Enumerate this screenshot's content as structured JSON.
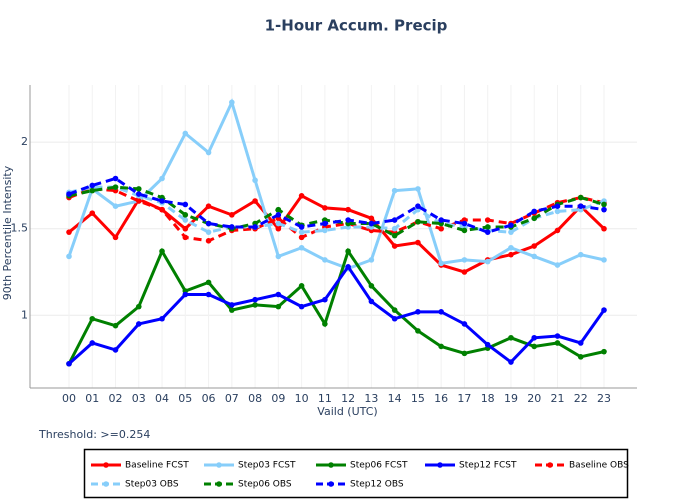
{
  "chart_data": {
    "type": "line",
    "title": "1-Hour Accum. Precip",
    "x_label": "Vaild (UTC)",
    "y_label": "90th Percentile Intensity",
    "annotation": "Threshold: >=0.254",
    "categories": [
      "00",
      "01",
      "02",
      "03",
      "04",
      "05",
      "06",
      "07",
      "08",
      "09",
      "10",
      "11",
      "12",
      "13",
      "14",
      "15",
      "16",
      "17",
      "18",
      "19",
      "20",
      "21",
      "22",
      "23"
    ],
    "ylim": [
      0.58,
      2.33
    ],
    "yticks": [
      1,
      1.5,
      2
    ],
    "grid": true,
    "series": [
      {
        "name": "Baseline FCST",
        "color": "#ff0000",
        "linestyle": "solid",
        "values": [
          1.48,
          1.59,
          1.45,
          1.67,
          1.61,
          1.5,
          1.63,
          1.58,
          1.66,
          1.5,
          1.69,
          1.62,
          1.61,
          1.56,
          1.4,
          1.42,
          1.29,
          1.25,
          1.32,
          1.35,
          1.4,
          1.49,
          1.63,
          1.5
        ]
      },
      {
        "name": "Step03 FCST",
        "color": "#87cefa",
        "linestyle": "solid",
        "values": [
          1.34,
          1.73,
          1.63,
          1.66,
          1.79,
          2.05,
          1.94,
          2.23,
          1.78,
          1.34,
          1.39,
          1.32,
          1.27,
          1.32,
          1.72,
          1.73,
          1.3,
          1.32,
          1.31,
          1.39,
          1.34,
          1.29,
          1.35,
          1.32
        ]
      },
      {
        "name": "Step06 FCST",
        "color": "#008000",
        "linestyle": "solid",
        "values": [
          0.72,
          0.98,
          0.94,
          1.05,
          1.37,
          1.14,
          1.19,
          1.03,
          1.06,
          1.05,
          1.17,
          0.95,
          1.37,
          1.17,
          1.03,
          0.91,
          0.82,
          0.78,
          0.81,
          0.87,
          0.82,
          0.84,
          0.76,
          0.79
        ]
      },
      {
        "name": "Step12 FCST",
        "color": "#0000ff",
        "linestyle": "solid",
        "values": [
          0.72,
          0.84,
          0.8,
          0.95,
          0.98,
          1.12,
          1.12,
          1.06,
          1.09,
          1.12,
          1.05,
          1.09,
          1.28,
          1.08,
          0.98,
          1.02,
          1.02,
          0.95,
          0.83,
          0.73,
          0.87,
          0.88,
          0.84,
          1.03
        ]
      },
      {
        "name": "Baseline OBS",
        "color": "#ff0000",
        "linestyle": "dashed",
        "values": [
          1.68,
          1.73,
          1.72,
          1.66,
          1.61,
          1.45,
          1.43,
          1.49,
          1.5,
          1.56,
          1.45,
          1.51,
          1.53,
          1.49,
          1.48,
          1.54,
          1.5,
          1.55,
          1.55,
          1.53,
          1.59,
          1.65,
          1.68,
          1.65
        ]
      },
      {
        "name": "Step03 OBS",
        "color": "#87cefa",
        "linestyle": "dashed",
        "values": [
          1.71,
          1.74,
          1.74,
          1.69,
          1.65,
          1.55,
          1.48,
          1.51,
          1.51,
          1.53,
          1.48,
          1.49,
          1.51,
          1.51,
          1.5,
          1.61,
          1.53,
          1.51,
          1.49,
          1.48,
          1.56,
          1.6,
          1.61,
          1.66
        ]
      },
      {
        "name": "Step06 OBS",
        "color": "#008000",
        "linestyle": "dashed",
        "values": [
          1.69,
          1.72,
          1.74,
          1.73,
          1.68,
          1.58,
          1.53,
          1.5,
          1.53,
          1.61,
          1.52,
          1.55,
          1.53,
          1.53,
          1.46,
          1.54,
          1.53,
          1.49,
          1.51,
          1.51,
          1.56,
          1.64,
          1.68,
          1.64
        ]
      },
      {
        "name": "Step12 OBS",
        "color": "#0000ff",
        "linestyle": "dashed",
        "values": [
          1.7,
          1.75,
          1.79,
          1.7,
          1.66,
          1.64,
          1.53,
          1.51,
          1.51,
          1.58,
          1.51,
          1.53,
          1.55,
          1.53,
          1.55,
          1.63,
          1.55,
          1.53,
          1.48,
          1.52,
          1.6,
          1.63,
          1.63,
          1.61
        ]
      }
    ]
  }
}
